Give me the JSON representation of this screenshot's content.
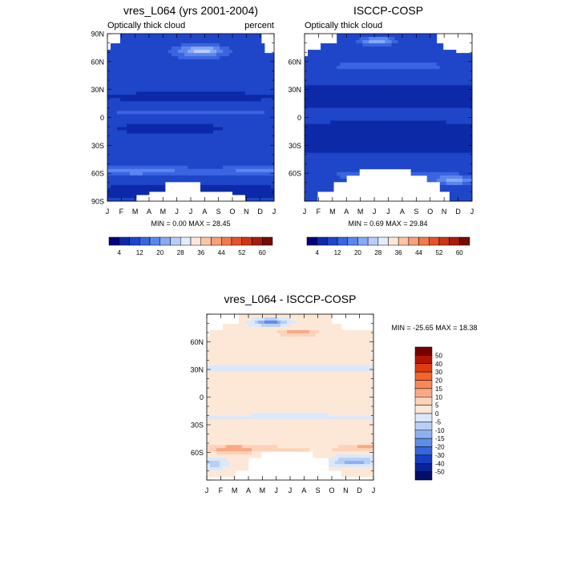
{
  "figure": {
    "panels": [
      {
        "id": "left",
        "title": "vres_L064 (yrs 2001-2004)",
        "subtitle_left": "Optically thick cloud",
        "subtitle_right": "percent",
        "stats": "MIN =   0.00 MAX =  28.45",
        "colorbar_labels": [
          "4",
          "12",
          "20",
          "28",
          "36",
          "44",
          "52",
          "60"
        ]
      },
      {
        "id": "right",
        "title": "ISCCP-COSP",
        "subtitle_left": "Optically thick cloud",
        "subtitle_right": "",
        "stats": "MIN =   0.69 MAX =  29.84",
        "colorbar_labels": [
          "4",
          "12",
          "20",
          "28",
          "36",
          "44",
          "52",
          "60"
        ]
      },
      {
        "id": "diff",
        "title": "vres_L064 - ISCCP-COSP",
        "subtitle_left": "",
        "subtitle_right": "",
        "stats": "MIN = -25.65 MAX =  18.38",
        "colorbar_labels": [
          "50",
          "40",
          "30",
          "20",
          "15",
          "10",
          "5",
          "0",
          "-5",
          "-10",
          "-15",
          "-20",
          "-30",
          "-40",
          "-50"
        ]
      }
    ]
  },
  "chart_data": [
    {
      "type": "heatmap",
      "title": "vres_L064 (yrs 2001-2004)",
      "subtitle": "Optically thick cloud",
      "units": "percent",
      "x_tick_labels": [
        "J",
        "F",
        "M",
        "A",
        "M",
        "J",
        "J",
        "A",
        "S",
        "O",
        "N",
        "D",
        "J"
      ],
      "y_tick_labels": [
        "90N",
        "60N",
        "30N",
        "0",
        "30S",
        "60S",
        "90S"
      ],
      "y_tick_values": [
        90,
        60,
        30,
        0,
        -30,
        -60,
        -90
      ],
      "ylim": [
        -90,
        90
      ],
      "min": 0.0,
      "max": 28.45,
      "colorbar_labels": [
        "4",
        "12",
        "20",
        "28",
        "36",
        "44",
        "52",
        "60"
      ],
      "colorbar_colors": [
        "#000080",
        "#0c2aa8",
        "#1f46c8",
        "#3a64e0",
        "#5b86ee",
        "#86aaf4",
        "#b8cdf8",
        "#e3ecfc",
        "#fde7d8",
        "#fbc4a6",
        "#f7a07a",
        "#f27a4e",
        "#e6532b",
        "#cc3518",
        "#a81c0c",
        "#7a0a04"
      ],
      "approx_field": "values 4-12 in tropics and subtropics, 12-20 in bands near 55-65S and the arctic, peaks 20-28 near 70N in Jun-Aug and near 55S in Jan-Mar"
    },
    {
      "type": "heatmap",
      "title": "ISCCP-COSP",
      "subtitle": "Optically thick cloud",
      "x_tick_labels": [
        "J",
        "F",
        "M",
        "A",
        "M",
        "J",
        "J",
        "A",
        "S",
        "O",
        "N",
        "D",
        "J"
      ],
      "y_tick_labels": [
        "60N",
        "30N",
        "0",
        "30S",
        "60S"
      ],
      "y_tick_values": [
        60,
        30,
        0,
        -30,
        -60
      ],
      "ylim": [
        -90,
        90
      ],
      "min": 0.69,
      "max": 29.84,
      "colorbar_labels": [
        "4",
        "12",
        "20",
        "28",
        "36",
        "44",
        "52",
        "60"
      ],
      "colorbar_colors": [
        "#000080",
        "#0c2aa8",
        "#1f46c8",
        "#3a64e0",
        "#5b86ee",
        "#86aaf4",
        "#b8cdf8",
        "#e3ecfc",
        "#fde7d8",
        "#fbc4a6",
        "#f7a07a",
        "#f27a4e",
        "#e6532b",
        "#cc3518",
        "#a81c0c",
        "#7a0a04"
      ],
      "approx_field": "values 4-12 in tropics, 12-20 in midlatitudes, peaks 20-28 near 80N in May-Jun and near 65S in Nov-Dec"
    },
    {
      "type": "heatmap",
      "title": "vres_L064 - ISCCP-COSP",
      "x_tick_labels": [
        "J",
        "F",
        "M",
        "A",
        "M",
        "J",
        "J",
        "A",
        "S",
        "O",
        "N",
        "D",
        "J"
      ],
      "y_tick_labels": [
        "60N",
        "30N",
        "0",
        "30S",
        "60S"
      ],
      "y_tick_values": [
        60,
        30,
        0,
        -30,
        -60
      ],
      "ylim": [
        -90,
        90
      ],
      "min": -25.65,
      "max": 18.38,
      "colorbar_labels": [
        "50",
        "40",
        "30",
        "20",
        "15",
        "10",
        "5",
        "0",
        "-5",
        "-10",
        "-15",
        "-20",
        "-30",
        "-40",
        "-50"
      ],
      "colorbar_colors": [
        "#7a0000",
        "#b01500",
        "#e03a12",
        "#f4642c",
        "#f7885a",
        "#f9a985",
        "#fcd2b8",
        "#fde8d8",
        "#dbe8fb",
        "#b7cff5",
        "#8db1ee",
        "#5f8ee8",
        "#3466de",
        "#163fc0",
        "#0a2398",
        "#00106a"
      ],
      "approx_field": "mostly 0 to 5 in tropics, 5-15 positive near 55S and 65N in summer, -5 to -20 near 80N in Apr-May and near 70S in Oct-Dec"
    }
  ]
}
